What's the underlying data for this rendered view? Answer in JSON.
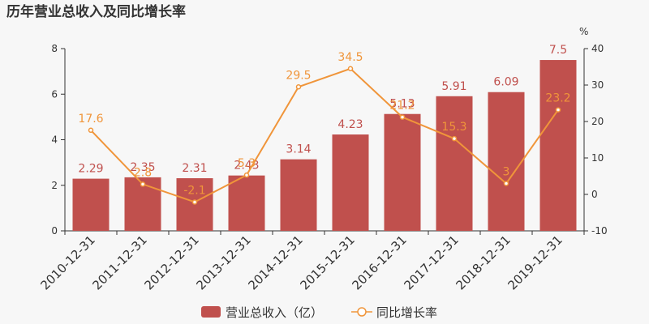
{
  "chart_data": {
    "type": "bar",
    "title": "历年营业总收入及同比增长率",
    "categories": [
      "2010-12-31",
      "2011-12-31",
      "2012-12-31",
      "2013-12-31",
      "2014-12-31",
      "2015-12-31",
      "2016-12-31",
      "2017-12-31",
      "2018-12-31",
      "2019-12-31"
    ],
    "series": [
      {
        "name": "营业总收入（亿）",
        "type": "bar",
        "axis": "left",
        "color": "#c0504d",
        "values": [
          2.29,
          2.35,
          2.31,
          2.43,
          3.14,
          4.23,
          5.13,
          5.91,
          6.09,
          7.5
        ]
      },
      {
        "name": "同比增长率",
        "type": "line",
        "axis": "right",
        "color": "#f0953a",
        "values": [
          17.6,
          2.8,
          -2.1,
          5.3,
          29.5,
          34.5,
          21.2,
          15.3,
          3,
          23.2
        ]
      }
    ],
    "y_left": {
      "range": [
        0,
        8
      ],
      "ticks": [
        0,
        2,
        4,
        6,
        8
      ]
    },
    "y_right": {
      "range": [
        -10,
        40
      ],
      "ticks": [
        -10,
        0,
        10,
        20,
        30,
        40
      ],
      "unit": "%"
    },
    "grid": false,
    "legend": "bottom-center"
  }
}
